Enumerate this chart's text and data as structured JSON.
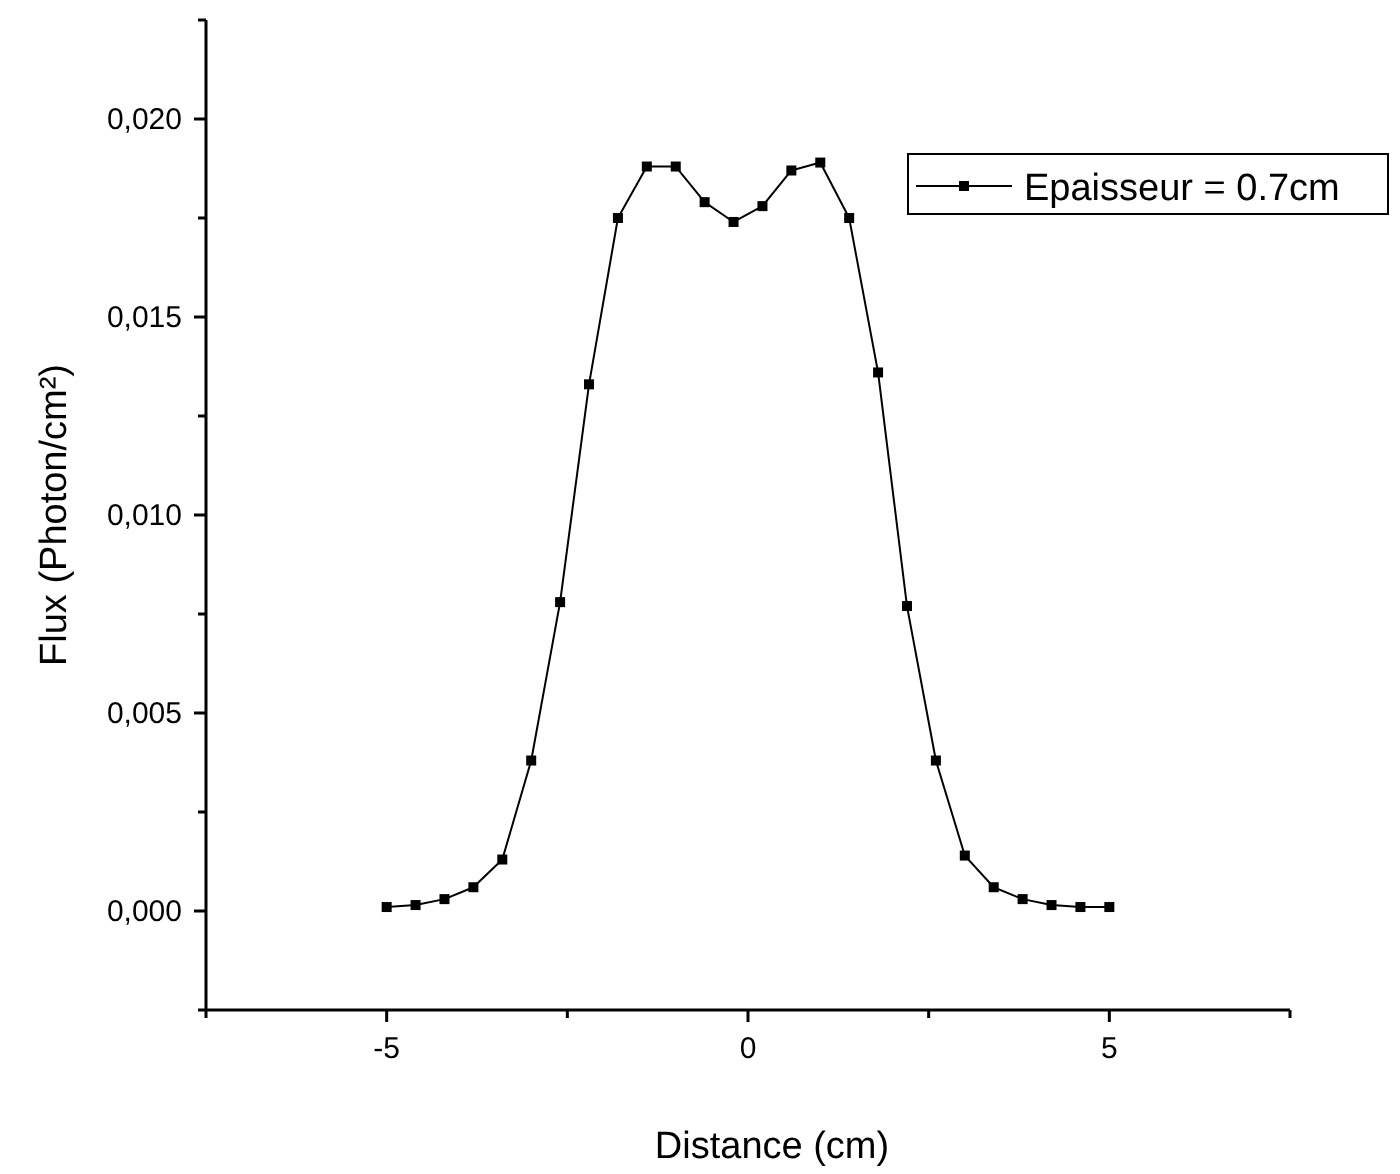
{
  "chart_data": {
    "type": "line",
    "xlabel": "Distance (cm)",
    "ylabel": "Flux (Photon/cm²)",
    "x": [
      -5,
      -4.6,
      -4.2,
      -3.8,
      -3.4,
      -3,
      -2.6,
      -2.2,
      -1.8,
      -1.4,
      -1,
      -0.6,
      -0.2,
      0.2,
      0.6,
      1,
      1.4,
      1.8,
      2.2,
      2.6,
      3,
      3.4,
      3.8,
      4.2,
      4.6,
      5
    ],
    "series": [
      {
        "name": "Epaisseur = 0.7cm",
        "color": "#000000",
        "values": [
          0.0001,
          0.00015,
          0.0003,
          0.0006,
          0.0013,
          0.0038,
          0.0078,
          0.0133,
          0.0175,
          0.0188,
          0.0188,
          0.0179,
          0.0174,
          0.0178,
          0.0187,
          0.0189,
          0.0175,
          0.0136,
          0.0077,
          0.0038,
          0.0014,
          0.0006,
          0.0003,
          0.00015,
          0.0001,
          0.0001
        ]
      }
    ],
    "xlim": [
      -7.5,
      7.5
    ],
    "xticks": [
      {
        "value": -7.5,
        "label": null
      },
      -5,
      {
        "value": -2.5,
        "label": null
      },
      0,
      {
        "value": 2.5,
        "label": null
      },
      5,
      {
        "value": 7.5,
        "label": null
      }
    ],
    "ylim": [
      -0.0025,
      0.0225
    ],
    "yticks": [
      {
        "value": -0.0025,
        "label": null
      },
      {
        "value": 0,
        "label": "0,000"
      },
      {
        "value": 0.0025,
        "label": null
      },
      {
        "value": 0.005,
        "label": "0,005"
      },
      {
        "value": 0.0075,
        "label": null
      },
      {
        "value": 0.01,
        "label": "0,010"
      },
      {
        "value": 0.0125,
        "label": null
      },
      {
        "value": 0.015,
        "label": "0,015"
      },
      {
        "value": 0.0175,
        "label": null
      },
      {
        "value": 0.02,
        "label": "0,020"
      },
      {
        "value": 0.0225,
        "label": null
      }
    ],
    "grid": false,
    "legend": "top right",
    "marker": "square",
    "line_style": "solid"
  }
}
